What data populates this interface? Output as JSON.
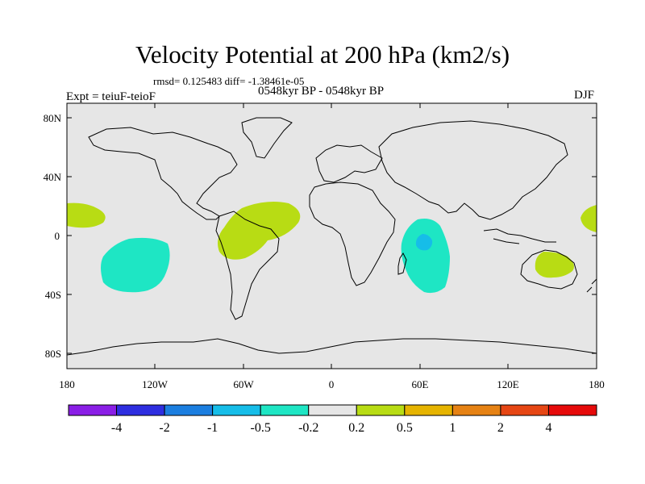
{
  "title": "Velocity Potential at 200 hPa (km2/s)",
  "stats": "rmsd= 0.125483 diff= -1.38461e-05",
  "expt": "Expt = teiuF-teioF",
  "period": "0548kyr BP - 0548kyr BP",
  "season": "DJF",
  "y_axis_labels": [
    "80N",
    "40N",
    "0",
    "40S",
    "80S"
  ],
  "x_axis_labels": [
    "180",
    "120W",
    "60W",
    "0",
    "60E",
    "120E",
    "180"
  ],
  "colorbar": {
    "labels": [
      "-4",
      "-2",
      "-1",
      "-0.5",
      "-0.2",
      "0.2",
      "0.5",
      "1",
      "2",
      "4"
    ],
    "colors": [
      "#8a1ee6",
      "#2e2ee0",
      "#1b7ee0",
      "#16bde8",
      "#1ee6c4",
      "#e6e6e6",
      "#b8dc14",
      "#e6b400",
      "#e68214",
      "#e64614",
      "#e60a0a"
    ]
  },
  "map_colors": {
    "background": "#e6e6e6",
    "positive": "#b8dc14",
    "negative": "#1ee6c4",
    "strong_negative": "#16bde8",
    "coast": "#000000"
  }
}
